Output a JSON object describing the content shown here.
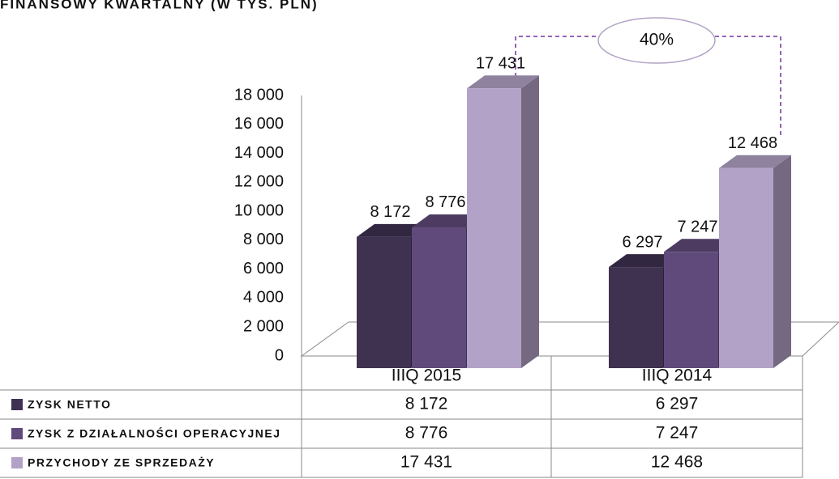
{
  "chart_data": {
    "type": "bar3d",
    "title": "FINANSOWY KWARTALNY (W TYS. PLN)",
    "annotation": "40%",
    "categories": [
      "IIIQ 2015",
      "IIIQ 2014"
    ],
    "series": [
      {
        "name": "ZYSK NETTO",
        "color": "#3f3150",
        "values": [
          8172,
          6297
        ],
        "value_labels": [
          "8 172",
          "6 297"
        ]
      },
      {
        "name": "ZYSK Z DZIAŁALNOŚCI OPERACYJNEJ",
        "color": "#604a7b",
        "values": [
          8776,
          7247
        ],
        "value_labels": [
          "8 776",
          "7 247"
        ]
      },
      {
        "name": "PRZYCHODY ZE SPRZEDAŻY",
        "color": "#b3a2c7",
        "values": [
          17431,
          12468
        ],
        "value_labels": [
          "17 431",
          "12 468"
        ]
      }
    ],
    "ylim": [
      0,
      18000
    ],
    "yticks": [
      0,
      {
        "value": 2000,
        "label": "2 000"
      },
      {
        "value": 4000,
        "label": "4 000"
      },
      {
        "value": 6000,
        "label": "6 000"
      },
      {
        "value": 8000,
        "label": "8 000"
      },
      {
        "value": 10000,
        "label": "10 000"
      },
      {
        "value": 12000,
        "label": "12 000"
      },
      {
        "value": 14000,
        "label": "14 000"
      },
      {
        "value": 16000,
        "label": "16 000"
      },
      {
        "value": 18000,
        "label": "18 000"
      }
    ]
  }
}
